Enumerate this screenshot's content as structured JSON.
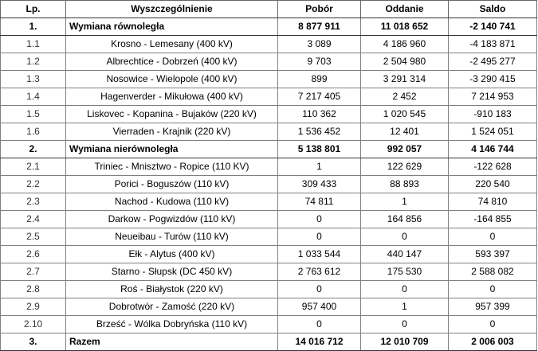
{
  "columns": [
    "Lp.",
    "Wyszczególnienie",
    "Pobór",
    "Oddanie",
    "Saldo"
  ],
  "rows": [
    {
      "type": "section",
      "lp": "1.",
      "name": "Wymiana równoległa",
      "pobor": "8 877 911",
      "oddanie": "11 018 652",
      "saldo": "-2 140 741"
    },
    {
      "type": "item",
      "lp": "1.1",
      "name": "Krosno - Lemesany (400 kV)",
      "pobor": "3 089",
      "oddanie": "4 186 960",
      "saldo": "-4 183 871"
    },
    {
      "type": "item",
      "lp": "1.2",
      "name": "Albrechtice - Dobrzeń (400 kV)",
      "pobor": "9 703",
      "oddanie": "2 504 980",
      "saldo": "-2 495 277"
    },
    {
      "type": "item",
      "lp": "1.3",
      "name": "Nosowice - Wielopole (400 kV)",
      "pobor": "899",
      "oddanie": "3 291 314",
      "saldo": "-3 290 415"
    },
    {
      "type": "item",
      "lp": "1.4",
      "name": "Hagenverder - Mikułowa (400 kV)",
      "pobor": "7 217 405",
      "oddanie": "2 452",
      "saldo": "7 214 953"
    },
    {
      "type": "item",
      "lp": "1.5",
      "name": "Liskovec - Kopanina - Bujaków (220 kV)",
      "pobor": "110 362",
      "oddanie": "1 020 545",
      "saldo": "-910 183"
    },
    {
      "type": "item",
      "lp": "1.6",
      "name": "Vierraden - Krajnik (220 kV)",
      "pobor": "1 536 452",
      "oddanie": "12 401",
      "saldo": "1 524 051"
    },
    {
      "type": "section",
      "lp": "2.",
      "name": "Wymiana nierównoległa",
      "pobor": "5 138 801",
      "oddanie": "992 057",
      "saldo": "4 146 744"
    },
    {
      "type": "item",
      "lp": "2.1",
      "name": "Triniec - Mnisztwo - Ropice (110 KV)",
      "pobor": "1",
      "oddanie": "122 629",
      "saldo": "-122 628"
    },
    {
      "type": "item",
      "lp": "2.2",
      "name": "Porici - Boguszów (110 kV)",
      "pobor": "309 433",
      "oddanie": "88 893",
      "saldo": "220 540"
    },
    {
      "type": "item",
      "lp": "2.3",
      "name": "Nachod - Kudowa (110 kV)",
      "pobor": "74 811",
      "oddanie": "1",
      "saldo": "74 810"
    },
    {
      "type": "item",
      "lp": "2.4",
      "name": "Darkow - Pogwizdów (110 kV)",
      "pobor": "0",
      "oddanie": "164 856",
      "saldo": "-164 855"
    },
    {
      "type": "item",
      "lp": "2.5",
      "name": "Neueibau - Turów (110 kV)",
      "pobor": "0",
      "oddanie": "0",
      "saldo": "0"
    },
    {
      "type": "item",
      "lp": "2.6",
      "name": "Ełk - Alytus (400 kV)",
      "pobor": "1 033 544",
      "oddanie": "440 147",
      "saldo": "593 397"
    },
    {
      "type": "item",
      "lp": "2.7",
      "name": "Starno - Słupsk (DC 450 kV)",
      "pobor": "2 763 612",
      "oddanie": "175 530",
      "saldo": "2 588 082"
    },
    {
      "type": "item",
      "lp": "2.8",
      "name": "Roś - Białystok (220 kV)",
      "pobor": "0",
      "oddanie": "0",
      "saldo": "0"
    },
    {
      "type": "item",
      "lp": "2.9",
      "name": "Dobrotwór - Zamość (220 kV)",
      "pobor": "957 400",
      "oddanie": "1",
      "saldo": "957 399"
    },
    {
      "type": "item",
      "lp": "2.10",
      "name": "Brześć - Wólka Dobryńska (110 kV)",
      "pobor": "0",
      "oddanie": "0",
      "saldo": "0"
    },
    {
      "type": "section",
      "lp": "3.",
      "name": "Razem",
      "pobor": "14 016 712",
      "oddanie": "12 010 709",
      "saldo": "2 006 003"
    }
  ]
}
